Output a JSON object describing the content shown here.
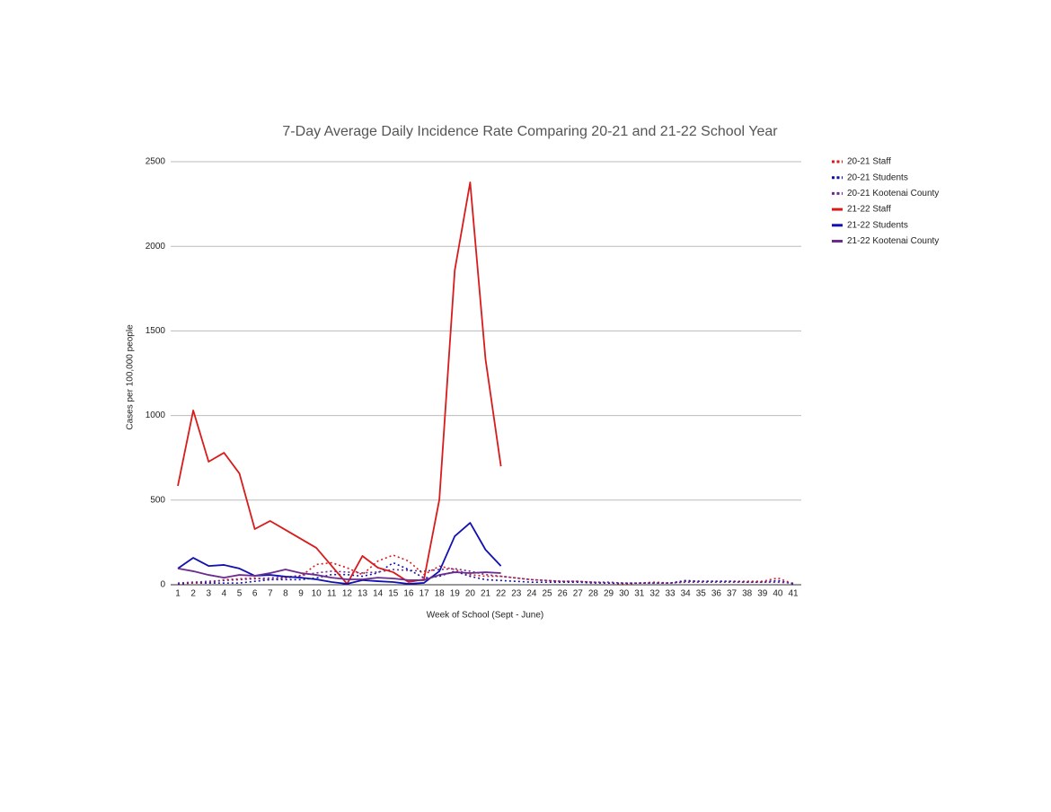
{
  "chart_data": {
    "type": "line",
    "title": "7-Day Average Daily Incidence Rate Comparing 20-21 and 21-22 School Year",
    "x_label": "Week of School (Sept - June)",
    "y_label": "Cases per 100,000 people",
    "categories": [
      "1",
      "2",
      "3",
      "4",
      "5",
      "6",
      "7",
      "8",
      "9",
      "10",
      "11",
      "12",
      "13",
      "14",
      "15",
      "16",
      "17",
      "18",
      "19",
      "20",
      "21",
      "22",
      "23",
      "24",
      "25",
      "26",
      "27",
      "28",
      "29",
      "30",
      "31",
      "32",
      "33",
      "34",
      "35",
      "36",
      "37",
      "38",
      "39",
      "40",
      "41"
    ],
    "ylim": [
      0,
      2500
    ],
    "yticks": [
      0,
      500,
      1000,
      1500,
      2000,
      2500
    ],
    "grid": true,
    "legend": "right",
    "series": [
      {
        "name": "20-21 Staff",
        "color": "#d81b1b",
        "dashed": true,
        "values": [
          5,
          10,
          10,
          30,
          35,
          40,
          30,
          40,
          50,
          120,
          130,
          100,
          60,
          140,
          175,
          140,
          60,
          110,
          90,
          60,
          50,
          50,
          40,
          30,
          25,
          20,
          20,
          15,
          10,
          5,
          10,
          15,
          10,
          20,
          20,
          20,
          20,
          20,
          20,
          40,
          5
        ]
      },
      {
        "name": "20-21 Students",
        "color": "#1010b0",
        "dashed": true,
        "values": [
          5,
          15,
          10,
          10,
          10,
          20,
          30,
          30,
          30,
          40,
          60,
          60,
          50,
          70,
          130,
          90,
          40,
          50,
          80,
          50,
          30,
          25,
          20,
          15,
          15,
          15,
          15,
          10,
          10,
          10,
          10,
          10,
          10,
          25,
          20,
          20,
          20,
          15,
          15,
          25,
          5
        ]
      },
      {
        "name": "20-21 Kootenai County",
        "color": "#6a2c8e",
        "dashed": true,
        "values": [
          10,
          15,
          20,
          25,
          30,
          35,
          40,
          45,
          55,
          70,
          80,
          75,
          70,
          75,
          90,
          85,
          80,
          90,
          95,
          80,
          60,
          50,
          40,
          30,
          25,
          20,
          20,
          15,
          15,
          10,
          10,
          10,
          10,
          15,
          15,
          15,
          15,
          15,
          15,
          15,
          10
        ]
      },
      {
        "name": "21-22 Staff",
        "color": "#d81b1b",
        "dashed": false,
        "values": [
          584,
          1030,
          727,
          780,
          658,
          329,
          377,
          324,
          271,
          218,
          111,
          5,
          170,
          101,
          74,
          16,
          32,
          504,
          1858,
          2378,
          1332,
          700,
          null,
          null,
          null,
          null,
          null,
          null,
          null,
          null,
          null,
          null,
          null,
          null,
          null,
          null,
          null,
          null,
          null,
          null,
          null
        ]
      },
      {
        "name": "21-22 Students",
        "color": "#1010b0",
        "dashed": false,
        "values": [
          96,
          159,
          111,
          117,
          96,
          53,
          58,
          48,
          42,
          32,
          16,
          5,
          27,
          21,
          16,
          5,
          11,
          80,
          287,
          366,
          207,
          111,
          null,
          null,
          null,
          null,
          null,
          null,
          null,
          null,
          null,
          null,
          null,
          null,
          null,
          null,
          null,
          null,
          null,
          null,
          null
        ]
      },
      {
        "name": "21-22 Kootenai County",
        "color": "#6a2c8e",
        "dashed": false,
        "values": [
          96,
          80,
          58,
          42,
          58,
          53,
          69,
          90,
          69,
          58,
          42,
          32,
          32,
          42,
          37,
          27,
          27,
          58,
          74,
          69,
          74,
          69,
          null,
          null,
          null,
          null,
          null,
          null,
          null,
          null,
          null,
          null,
          null,
          null,
          null,
          null,
          null,
          null,
          null,
          null,
          null
        ]
      }
    ]
  }
}
